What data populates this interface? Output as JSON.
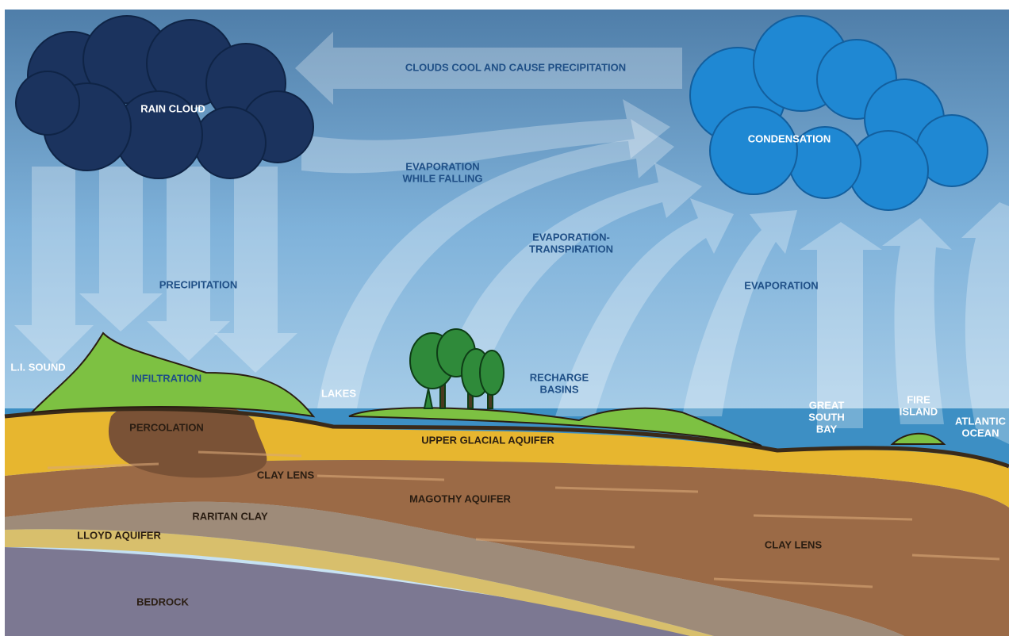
{
  "clouds": {
    "rain": "RAIN CLOUD",
    "condensation": "CONDENSATION"
  },
  "processes": {
    "cool": "CLOUDS COOL AND CAUSE PRECIPITATION",
    "evaporation_falling": [
      "EVAPORATION",
      "WHILE FALLING"
    ],
    "evapotranspiration": [
      "EVAPORATION-",
      "TRANSPIRATION"
    ],
    "precipitation": "PRECIPITATION",
    "evaporation": "EVAPORATION",
    "infiltration": "INFILTRATION",
    "percolation": "PERCOLATION"
  },
  "surface": {
    "li_sound": "L.I. SOUND",
    "lakes": "LAKES",
    "recharge_basins": [
      "RECHARGE",
      "BASINS"
    ],
    "great_south_bay": [
      "GREAT",
      "SOUTH",
      "BAY"
    ],
    "fire_island": [
      "FIRE",
      "ISLAND"
    ],
    "atlantic_ocean": [
      "ATLANTIC",
      "OCEAN"
    ]
  },
  "layers": {
    "upper_glacial": "UPPER GLACIAL AQUIFER",
    "clay_lens_upper": "CLAY LENS",
    "magothy": "MAGOTHY AQUIFER",
    "raritan": "RARITAN CLAY",
    "lloyd": "LLOYD AQUIFER",
    "clay_lens_lower": "CLAY LENS",
    "bedrock": "BEDROCK"
  }
}
